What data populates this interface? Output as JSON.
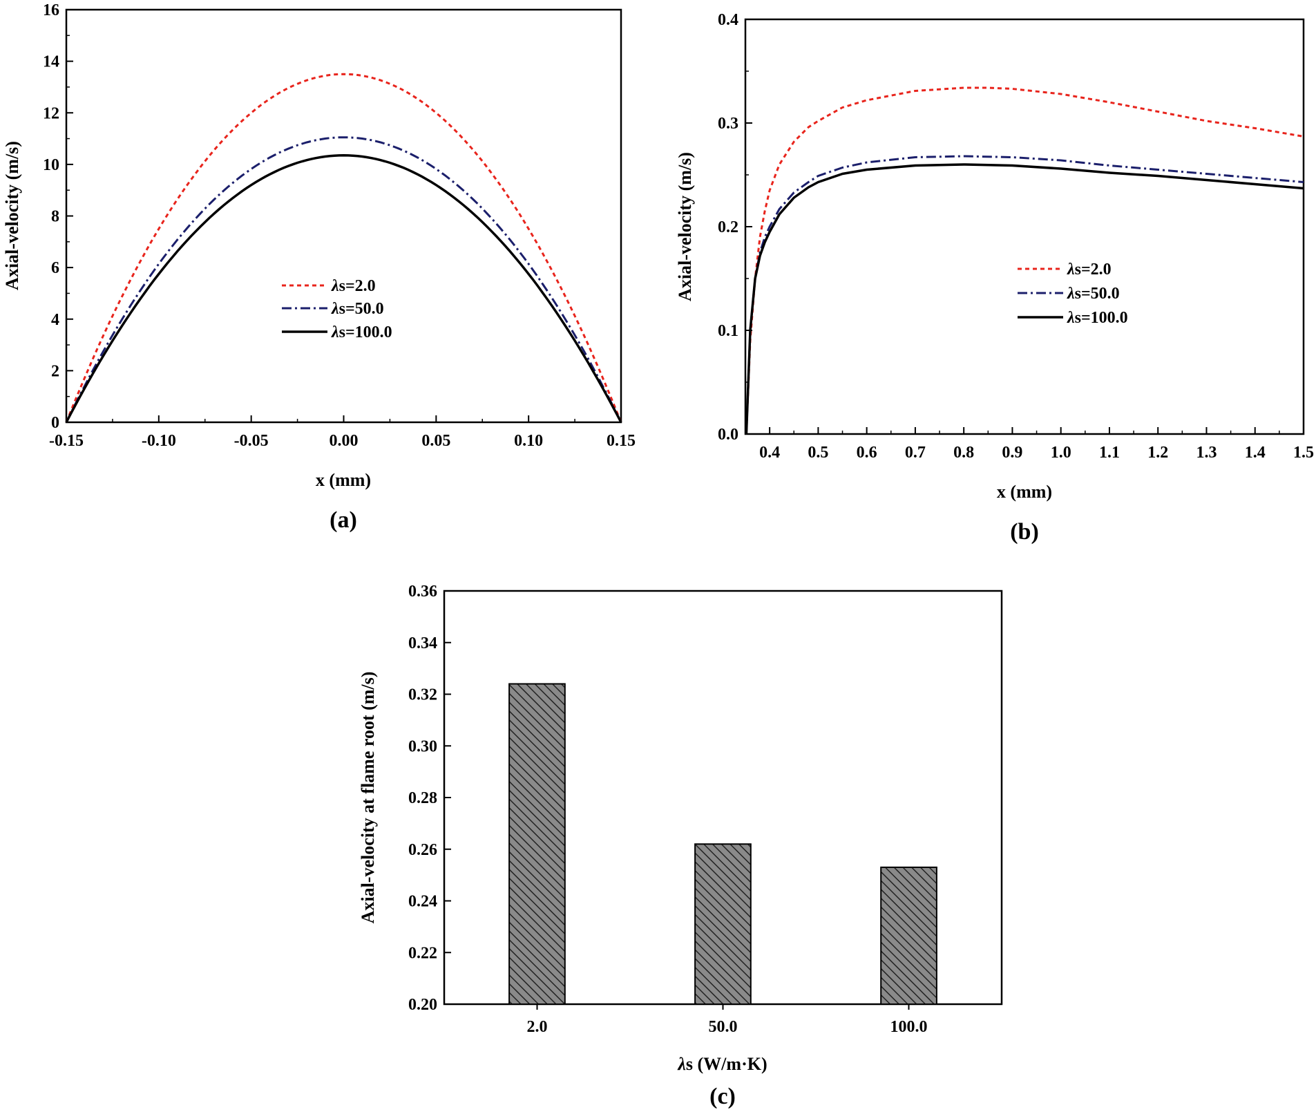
{
  "chart_data": [
    {
      "type": "line",
      "panel_label": "(a)",
      "xlabel": "x (mm)",
      "ylabel": "Axial-velocity (m/s)",
      "xlim": [
        -0.15,
        0.15
      ],
      "ylim": [
        0,
        16
      ],
      "xticks": [
        -0.15,
        -0.1,
        -0.05,
        0.0,
        0.05,
        0.1,
        0.15
      ],
      "xtick_labels": [
        "-0.15",
        "-0.10",
        "-0.05",
        "0.00",
        "0.05",
        "0.10",
        "0.15"
      ],
      "yticks": [
        0,
        2,
        4,
        6,
        8,
        10,
        12,
        14,
        16
      ],
      "ytick_labels": [
        "0",
        "2",
        "4",
        "6",
        "8",
        "10",
        "12",
        "14",
        "16"
      ],
      "legend_position": "center",
      "series": [
        {
          "name": "λs=2.0",
          "legend_symbol": "λ",
          "legend_rest": "s=2.0",
          "color": "#e8241c",
          "style": "dashed",
          "profile": "parabolic",
          "peak": 13.5
        },
        {
          "name": "λs=50.0",
          "legend_symbol": "λ",
          "legend_rest": "s=50.0",
          "color": "#1b1f6b",
          "style": "dashdot",
          "profile": "parabolic",
          "peak": 11.05
        },
        {
          "name": "λs=100.0",
          "legend_symbol": "λ",
          "legend_rest": "s=100.0",
          "color": "#000000",
          "style": "solid",
          "profile": "parabolic",
          "peak": 10.35
        }
      ]
    },
    {
      "type": "line",
      "panel_label": "(b)",
      "xlabel": "x (mm)",
      "ylabel": "Axial-velocity (m/s)",
      "xlim": [
        0.35,
        1.5
      ],
      "ylim": [
        0,
        0.4
      ],
      "xticks": [
        0.4,
        0.5,
        0.6,
        0.7,
        0.8,
        0.9,
        1.0,
        1.1,
        1.2,
        1.3,
        1.4,
        1.5
      ],
      "xtick_labels": [
        "0.4",
        "0.5",
        "0.6",
        "0.7",
        "0.8",
        "0.9",
        "1.0",
        "1.1",
        "1.2",
        "1.3",
        "1.4",
        "1.5"
      ],
      "yticks": [
        0.0,
        0.1,
        0.2,
        0.3,
        0.4
      ],
      "ytick_labels": [
        "0.0",
        "0.1",
        "0.2",
        "0.3",
        "0.4"
      ],
      "legend_position": "center-right",
      "series": [
        {
          "name": "λs=2.0",
          "legend_symbol": "λ",
          "legend_rest": "s=2.0",
          "color": "#e8241c",
          "style": "dashed",
          "x": [
            0.352,
            0.36,
            0.37,
            0.38,
            0.39,
            0.4,
            0.42,
            0.45,
            0.48,
            0.5,
            0.55,
            0.6,
            0.7,
            0.8,
            0.85,
            0.9,
            1.0,
            1.1,
            1.2,
            1.3,
            1.4,
            1.5
          ],
          "y": [
            0.0,
            0.09,
            0.15,
            0.19,
            0.215,
            0.235,
            0.26,
            0.282,
            0.296,
            0.302,
            0.315,
            0.322,
            0.331,
            0.334,
            0.334,
            0.333,
            0.328,
            0.32,
            0.311,
            0.302,
            0.295,
            0.287
          ]
        },
        {
          "name": "λs=50.0",
          "legend_symbol": "λ",
          "legend_rest": "s=50.0",
          "color": "#1b1f6b",
          "style": "dashdot",
          "x": [
            0.352,
            0.36,
            0.37,
            0.38,
            0.39,
            0.4,
            0.42,
            0.45,
            0.48,
            0.5,
            0.55,
            0.6,
            0.7,
            0.8,
            0.9,
            1.0,
            1.1,
            1.2,
            1.3,
            1.4,
            1.5
          ],
          "y": [
            0.0,
            0.1,
            0.15,
            0.175,
            0.19,
            0.2,
            0.217,
            0.233,
            0.243,
            0.249,
            0.257,
            0.262,
            0.267,
            0.268,
            0.267,
            0.264,
            0.259,
            0.255,
            0.251,
            0.247,
            0.243
          ]
        },
        {
          "name": "λs=100.0",
          "legend_symbol": "λ",
          "legend_rest": "s=100.0",
          "color": "#000000",
          "style": "solid",
          "x": [
            0.352,
            0.36,
            0.37,
            0.38,
            0.39,
            0.4,
            0.42,
            0.45,
            0.48,
            0.5,
            0.55,
            0.6,
            0.7,
            0.8,
            0.9,
            1.0,
            1.1,
            1.2,
            1.3,
            1.4,
            1.5
          ],
          "y": [
            0.0,
            0.1,
            0.15,
            0.172,
            0.185,
            0.195,
            0.212,
            0.228,
            0.238,
            0.243,
            0.251,
            0.255,
            0.259,
            0.26,
            0.259,
            0.256,
            0.252,
            0.249,
            0.245,
            0.241,
            0.237
          ]
        }
      ]
    },
    {
      "type": "bar",
      "panel_label": "(c)",
      "xlabel_symbol": "λ",
      "xlabel_rest": "s (W/m·K)",
      "ylabel": "Axial-velocity at flame root (m/s)",
      "categories": [
        "2.0",
        "50.0",
        "100.0"
      ],
      "values": [
        0.324,
        0.262,
        0.253
      ],
      "ylim": [
        0.2,
        0.36
      ],
      "yticks": [
        0.2,
        0.22,
        0.24,
        0.26,
        0.28,
        0.3,
        0.32,
        0.34,
        0.36
      ],
      "ytick_labels": [
        "0.20",
        "0.22",
        "0.24",
        "0.26",
        "0.28",
        "0.30",
        "0.32",
        "0.34",
        "0.36"
      ],
      "bar_fill": "#8a8a8a",
      "bar_hatch": "diagonal"
    }
  ]
}
